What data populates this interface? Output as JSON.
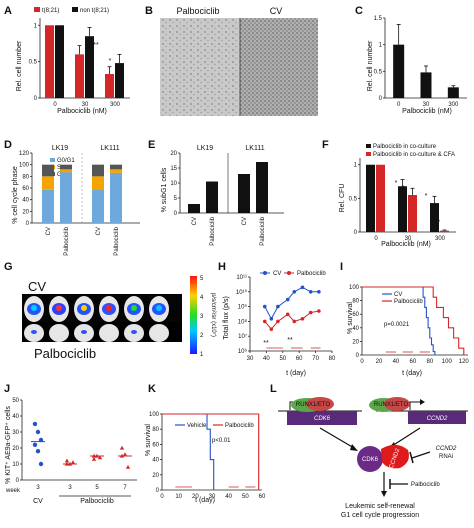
{
  "panels": {
    "A": {
      "label": "A",
      "legend": [
        "t(8;21)",
        "non t(8;21)"
      ],
      "ylabel": "Rel. cell number",
      "xlabel": "Palbociclib (nM)",
      "yticks": [
        "0",
        "0.5",
        "1"
      ],
      "categories": [
        "0",
        "30",
        "300"
      ],
      "annotations": [
        "**",
        "*"
      ]
    },
    "B": {
      "label": "B",
      "left_title": "Palbociclib",
      "right_title": "CV"
    },
    "C": {
      "label": "C",
      "ylabel": "Rel. cell number",
      "xlabel": "Palbociclib (nM)",
      "yticks": [
        "0",
        "0.5",
        "1",
        "1.5"
      ],
      "categories": [
        "0",
        "30",
        "300"
      ]
    },
    "D": {
      "label": "D",
      "titles": [
        "LK19",
        "LK111"
      ],
      "ylabel": "% cell cycle phase",
      "yticks": [
        "0",
        "20",
        "40",
        "60",
        "80",
        "100",
        "120"
      ],
      "legend": [
        "G0/G1",
        "S",
        "G2/M"
      ],
      "categories": [
        "CV",
        "Palbociclib",
        "CV",
        "Palbociclib"
      ]
    },
    "E": {
      "label": "E",
      "titles": [
        "LK19",
        "LK111"
      ],
      "ylabel": "% subG1 cells",
      "yticks": [
        "0",
        "5",
        "10",
        "15",
        "20"
      ],
      "categories": [
        "CV",
        "Palbociclib",
        "CV",
        "Palbociclib"
      ]
    },
    "F": {
      "label": "F",
      "legend": [
        "Palbociclib in co-culture",
        "Palbociclib in co-culture & CFA"
      ],
      "ylabel": "Rel. CFU",
      "xlabel": "Palbociclib (nM)",
      "yticks": [
        "0",
        "0.5",
        "1"
      ],
      "categories": [
        "0",
        "30",
        "300"
      ],
      "annotations": [
        "*",
        "*",
        "*",
        "***"
      ]
    },
    "G": {
      "label": "G",
      "top_label": "CV",
      "bottom_label": "Palbociclib",
      "scale_label": "p/s/cm²/sr (x10⁷)",
      "scale_ticks": [
        "1",
        "2",
        "3",
        "4",
        "5"
      ]
    },
    "H": {
      "label": "H",
      "legend": [
        "CV",
        "Palbociclib"
      ],
      "ylabel": "Total flux (p/s)",
      "xlabel": "t (day)",
      "yticks": [
        "10⁶",
        "10⁷",
        "10⁸",
        "10⁹",
        "10¹⁰",
        "10¹¹"
      ],
      "xticks": [
        "30",
        "40",
        "50",
        "60",
        "70",
        "80"
      ],
      "annotations": [
        "**",
        "**"
      ]
    },
    "I": {
      "label": "I",
      "legend": [
        "CV",
        "Palbociclib"
      ],
      "ylabel": "% survival",
      "xlabel": "t (day)",
      "pvalue": "p=0.0021",
      "yticks": [
        "0",
        "20",
        "40",
        "60",
        "80",
        "100"
      ],
      "xticks": [
        "0",
        "20",
        "40",
        "60",
        "80",
        "100",
        "120"
      ]
    },
    "J": {
      "label": "J",
      "ylabel": "% KIT⁺ AE9a-GFP⁺ cells",
      "yticks": [
        "0",
        "10",
        "20",
        "30",
        "40",
        "50"
      ],
      "week_label": "week",
      "weeks": [
        "3",
        "3",
        "5",
        "7"
      ],
      "group_labels": [
        "CV",
        "Palbociclib"
      ]
    },
    "K": {
      "label": "K",
      "legend": [
        "Vehicle",
        "Palbociclib"
      ],
      "ylabel": "% survival",
      "xlabel": "t (day)",
      "pvalue": "p<0.01",
      "yticks": [
        "0",
        "20",
        "40",
        "60",
        "80",
        "100"
      ],
      "xticks": [
        "0",
        "10",
        "20",
        "30",
        "40",
        "50",
        "60"
      ]
    },
    "L": {
      "label": "L",
      "gene_left": "CDK6",
      "gene_right": "CCND2",
      "fusion_left": "RUNX1/ETO",
      "fusion_right": "RUNX1/ETO",
      "protein_left": "CDK6",
      "protein_right": "CCND2",
      "rnai_gene": "CCND2",
      "rnai_label": "RNAi",
      "drug": "Palbociclib",
      "outcome_line1": "Leukemic self-renewal",
      "outcome_line2": "G1 cell cycle progression"
    }
  },
  "chart_data": [
    {
      "panel": "A",
      "type": "bar",
      "categories": [
        "0",
        "30",
        "300"
      ],
      "series": [
        {
          "name": "t(8;21)",
          "values": [
            1.0,
            0.6,
            0.33
          ],
          "errors": [
            0.0,
            0.12,
            0.1
          ]
        },
        {
          "name": "non t(8;21)",
          "values": [
            1.0,
            0.85,
            0.48
          ],
          "errors": [
            0.0,
            0.12,
            0.12
          ]
        }
      ],
      "ylabel": "Rel. cell number",
      "xlabel": "Palbociclib (nM)",
      "ylim": [
        0,
        1.1
      ]
    },
    {
      "panel": "C",
      "type": "bar",
      "categories": [
        "0",
        "30",
        "300"
      ],
      "series": [
        {
          "values": [
            1.0,
            0.48,
            0.2
          ],
          "errors": [
            0.38,
            0.12,
            0.03
          ]
        }
      ],
      "ylabel": "Rel. cell number",
      "xlabel": "Palbociclib (nM)",
      "ylim": [
        0,
        1.5
      ]
    },
    {
      "panel": "D",
      "type": "bar",
      "stacked": true,
      "groups": [
        "LK19",
        "LK111"
      ],
      "categories": [
        "CV",
        "Palbociclib",
        "CV",
        "Palbociclib"
      ],
      "series": [
        {
          "name": "G0/G1",
          "values": [
            57,
            87,
            58,
            86
          ]
        },
        {
          "name": "S",
          "values": [
            23,
            5,
            22,
            6
          ]
        },
        {
          "name": "G2/M",
          "values": [
            20,
            8,
            20,
            8
          ]
        }
      ],
      "ylabel": "% cell cycle phase",
      "ylim": [
        0,
        120
      ]
    },
    {
      "panel": "E",
      "type": "bar",
      "groups": [
        "LK19",
        "LK111"
      ],
      "categories": [
        "CV",
        "Palbociclib",
        "CV",
        "Palbociclib"
      ],
      "series": [
        {
          "values": [
            3,
            10.5,
            13,
            17
          ]
        }
      ],
      "ylabel": "% subG1 cells",
      "ylim": [
        0,
        20
      ]
    },
    {
      "panel": "F",
      "type": "bar",
      "categories": [
        "0",
        "30",
        "300"
      ],
      "series": [
        {
          "name": "Palbociclib in co-culture",
          "values": [
            1.0,
            0.68,
            0.43
          ],
          "errors": [
            0.0,
            0.1,
            0.1
          ]
        },
        {
          "name": "Palbociclib in co-culture & CFA",
          "values": [
            1.0,
            0.55,
            0.02
          ],
          "errors": [
            0.0,
            0.1,
            0.01
          ]
        }
      ],
      "ylabel": "Rel. CFU",
      "xlabel": "Palbociclib (nM)",
      "ylim": [
        0,
        1.1
      ]
    },
    {
      "panel": "H",
      "type": "line",
      "yscale": "log",
      "series": [
        {
          "name": "CV",
          "x": [
            39,
            43,
            47,
            53,
            57,
            62,
            67,
            72
          ],
          "y": [
            1000000000.0,
            150000000.0,
            1000000000.0,
            3000000000.0,
            10000000000.0,
            20000000000.0,
            10000000000.0,
            10000000000.0
          ]
        },
        {
          "name": "Palbociclib",
          "x": [
            39,
            43,
            47,
            53,
            57,
            62,
            67,
            72
          ],
          "y": [
            100000000.0,
            30000000.0,
            100000000.0,
            300000000.0,
            100000000.0,
            150000000.0,
            400000000.0,
            500000000.0
          ]
        }
      ],
      "ylabel": "Total flux (p/s)",
      "xlabel": "t (day)",
      "xlim": [
        30,
        80
      ],
      "ylim": [
        1000000.0,
        100000000000.0
      ]
    },
    {
      "panel": "I",
      "type": "line",
      "step": true,
      "series": [
        {
          "name": "CV",
          "x": [
            0,
            70,
            72,
            74,
            76,
            78,
            80,
            82,
            84,
            86
          ],
          "y": [
            100,
            100,
            85,
            70,
            55,
            40,
            25,
            15,
            5,
            0
          ]
        },
        {
          "name": "Palbociclib",
          "x": [
            0,
            80,
            84,
            88,
            96,
            102,
            108,
            114,
            120
          ],
          "y": [
            100,
            100,
            85,
            70,
            55,
            40,
            25,
            10,
            0
          ]
        }
      ],
      "pvalue": "p=0.0021",
      "ylabel": "% survival",
      "xlabel": "t (day)",
      "xlim": [
        0,
        125
      ],
      "ylim": [
        0,
        100
      ]
    },
    {
      "panel": "J",
      "type": "scatter",
      "categories": [
        "3",
        "3",
        "5",
        "7"
      ],
      "series": [
        {
          "name": "CV",
          "values": [
            [
              35,
              30,
              25,
              22,
              18,
              10
            ]
          ],
          "mean": [
            24
          ]
        },
        {
          "name": "Palbociclib",
          "values": [
            [
              10,
              10,
              11,
              12
            ],
            [
              15,
              15,
              14,
              13
            ],
            [
              20,
              16,
              8,
              15
            ]
          ],
          "mean": [
            10,
            15,
            15
          ]
        }
      ],
      "ylabel": "% KIT⁺ AE9a-GFP⁺ cells",
      "ylim": [
        0,
        50
      ]
    },
    {
      "panel": "K",
      "type": "line",
      "step": true,
      "series": [
        {
          "name": "Vehicle",
          "x": [
            0,
            24,
            27,
            29,
            31
          ],
          "y": [
            100,
            100,
            80,
            40,
            0
          ]
        },
        {
          "name": "Palbociclib",
          "x": [
            0,
            56,
            58
          ],
          "y": [
            100,
            100,
            0
          ]
        }
      ],
      "pvalue": "p<0.01",
      "ylabel": "% survival",
      "xlabel": "t (day)",
      "xlim": [
        0,
        60
      ],
      "ylim": [
        0,
        100
      ]
    }
  ],
  "colors": {
    "red": "#d62728",
    "black": "#111111",
    "blue": "#2453c9",
    "g01": "#6fa8dc",
    "s": "#f4a300",
    "g2m": "#555555",
    "gene_purple": "#5a2a7a",
    "ccnd2_red": "#e01a1a",
    "cdk6_purple": "#6b2a86"
  }
}
